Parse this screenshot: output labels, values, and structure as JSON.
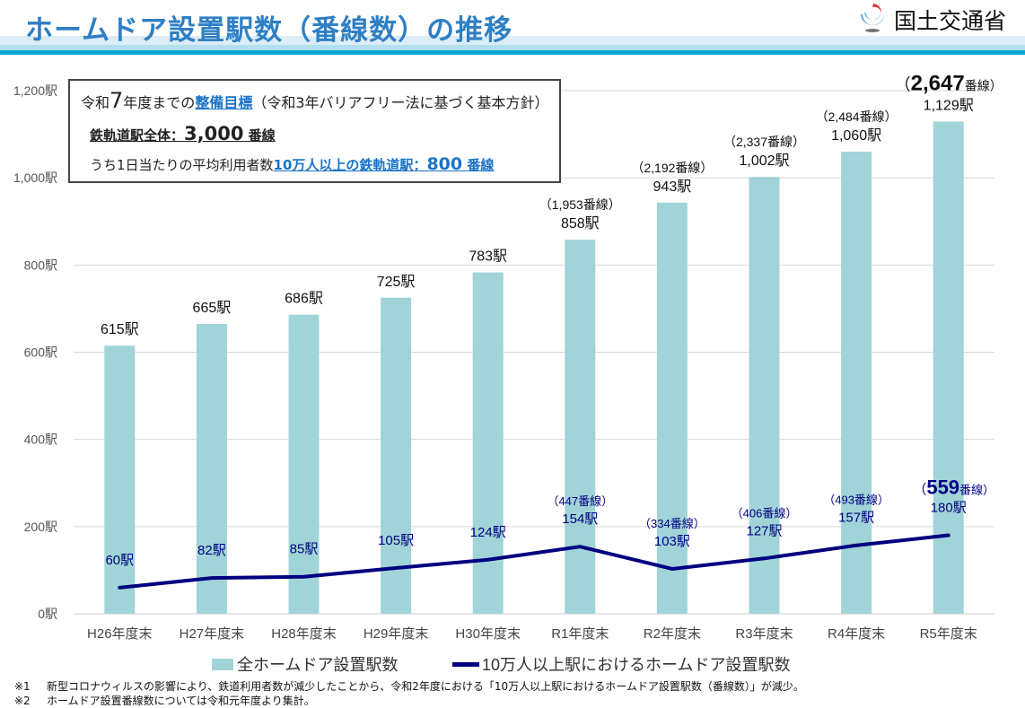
{
  "header": {
    "title": "ホームドア設置駅数（番線数）の推移",
    "ministry": "国土交通省",
    "logo_icon": "mlit-logo-icon"
  },
  "goal_box": {
    "line1_prefix": "令和",
    "line1_year": "7",
    "line1_middle": "年度までの",
    "line1_link": "整備目標",
    "line1_suffix": "（令和3年バリアフリー法に基づく基本方針）",
    "line2_label": "鉄軌道駅全体：",
    "line2_value": "3,000",
    "line2_unit": " 番線",
    "line3_prefix": "うち1日当たりの平均利用者数",
    "line3_link_label": "10万人以上の鉄軌道駅：",
    "line3_value": "800",
    "line3_unit": " 番線"
  },
  "colors": {
    "bar": "#a0d4d8",
    "line": "#000080",
    "title": "#2f7fc4",
    "link": "#1a73c8",
    "grid": "#d9d9d9"
  },
  "chart_data": {
    "type": "bar+line",
    "title": "ホームドア設置駅数（番線数）の推移",
    "categories": [
      "H26年度末",
      "H27年度末",
      "H28年度末",
      "H29年度末",
      "H30年度末",
      "R1年度末",
      "R2年度末",
      "R3年度末",
      "R4年度末",
      "R5年度末"
    ],
    "ylim": [
      0,
      1200
    ],
    "yticks": [
      0,
      200,
      400,
      600,
      800,
      1000,
      1200
    ],
    "ytick_labels": [
      "0駅",
      "200駅",
      "400駅",
      "600駅",
      "800駅",
      "1,000駅",
      "1,200駅"
    ],
    "grid": true,
    "legend_position": "bottom",
    "series": [
      {
        "name": "全ホームドア設置駅数",
        "type": "bar",
        "values": [
          615,
          665,
          686,
          725,
          783,
          858,
          943,
          1002,
          1060,
          1129
        ],
        "labels": [
          "615駅",
          "665駅",
          "686駅",
          "725駅",
          "783駅",
          "858駅",
          "943駅",
          "1,002駅",
          "1,060駅",
          "1,129駅"
        ],
        "platform_labels": [
          null,
          null,
          null,
          null,
          null,
          "（1,953番線）",
          "（2,192番線）",
          "（2,337番線）",
          "（2,484番線）",
          "（2,647番線）"
        ],
        "platforms": [
          null,
          null,
          null,
          null,
          null,
          1953,
          2192,
          2337,
          2484,
          2647
        ]
      },
      {
        "name": "10万人以上駅におけるホームドア設置駅数",
        "type": "line",
        "values": [
          60,
          82,
          85,
          105,
          124,
          154,
          103,
          127,
          157,
          180
        ],
        "labels": [
          "60駅",
          "82駅",
          "85駅",
          "105駅",
          "124駅",
          "154駅",
          "103駅",
          "127駅",
          "157駅",
          "180駅"
        ],
        "platform_labels": [
          null,
          null,
          null,
          null,
          null,
          "（447番線）",
          "（334番線）",
          "（406番線）",
          "（493番線）",
          "（559番線）"
        ],
        "platforms": [
          null,
          null,
          null,
          null,
          null,
          447,
          334,
          406,
          493,
          559
        ]
      }
    ],
    "highlight_last": {
      "bar_platforms": "2,647",
      "line_platforms": "559",
      "unit": "番線"
    }
  },
  "footnotes": [
    {
      "mark": "※1",
      "text": "新型コロナウィルスの影響により、鉄道利用者数が減少したことから、令和2年度における「10万人以上駅におけるホームドア設置駅数（番線数）」が減少。"
    },
    {
      "mark": "※2",
      "text": "ホームドア設置番線数については令和元年度より集計。"
    }
  ]
}
